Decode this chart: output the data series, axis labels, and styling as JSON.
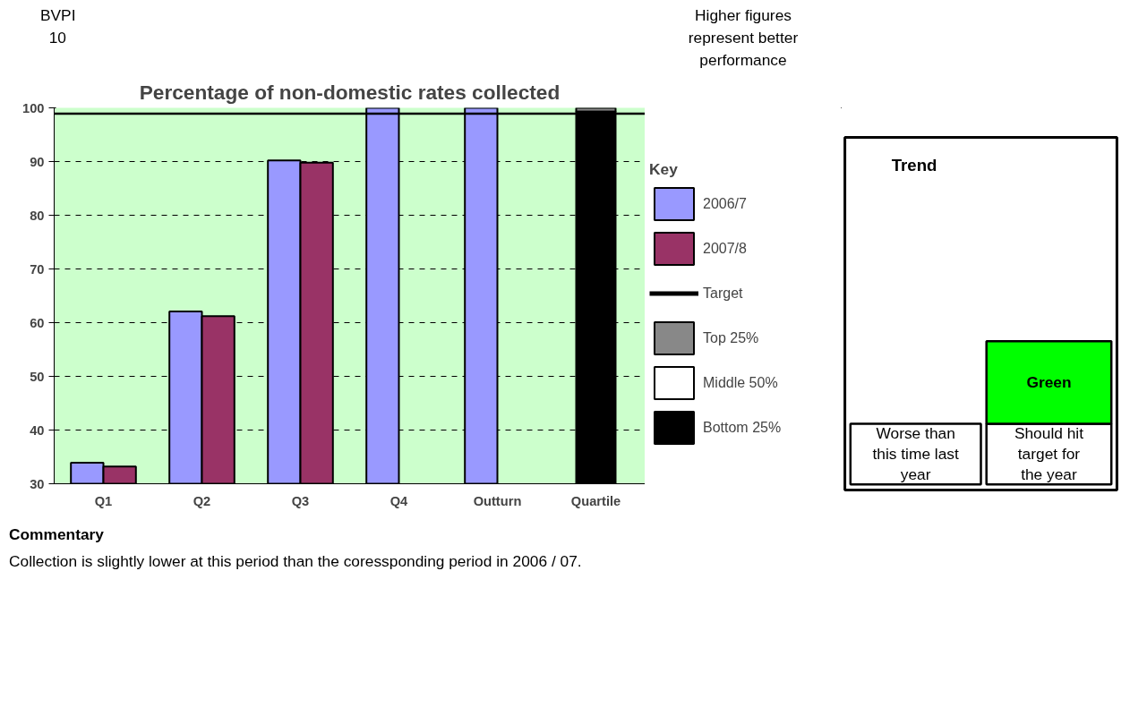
{
  "chart_data": [
    {
      "type": "bar",
      "title": "Percentage of non-domestic rates collected",
      "categories": [
        "Q1",
        "Q2",
        "Q3",
        "Q4",
        "Outturn",
        "Quartile"
      ],
      "series": [
        {
          "name": "2006/7",
          "color": "#9999ff",
          "values": [
            33.9,
            62.1,
            90.2,
            100,
            100,
            null
          ]
        },
        {
          "name": "2007/8",
          "color": "#993366",
          "values": [
            33.2,
            61.2,
            89.8,
            null,
            null,
            null
          ]
        },
        {
          "name": "Top 25%",
          "color": "#888888",
          "values": [
            null,
            null,
            null,
            null,
            null,
            0.7
          ],
          "base": [
            null,
            null,
            null,
            null,
            null,
            99.3
          ]
        },
        {
          "name": "Middle 50%",
          "color": "#ffffff",
          "values": [
            null,
            null,
            null,
            null,
            null,
            0.3
          ],
          "base": [
            null,
            null,
            null,
            null,
            null,
            99.0
          ]
        },
        {
          "name": "Bottom 25%",
          "color": "#000000",
          "values": [
            null,
            null,
            null,
            null,
            null,
            69.0
          ],
          "base": [
            null,
            null,
            null,
            null,
            null,
            30
          ]
        }
      ],
      "ylim": [
        30,
        100
      ],
      "yticks": [
        30,
        40,
        50,
        60,
        70,
        80,
        90,
        100
      ],
      "grid": "y",
      "legend": "right",
      "legend_title": "Key",
      "ref_lines": [
        {
          "axis": "y",
          "value": 98.9,
          "label": "Target",
          "color": "#000000"
        }
      ],
      "annotations": [
        "BVPI 10",
        "Higher figures represent better performance",
        "Commentary",
        "Collection is slightly lower at this period than the coressponding period in 2006 / 07."
      ]
    },
    {
      "type": "other",
      "title": "Trend",
      "annotations": [
        "Worse than this time last year",
        "Green",
        "Should hit target for the year"
      ]
    }
  ]
}
